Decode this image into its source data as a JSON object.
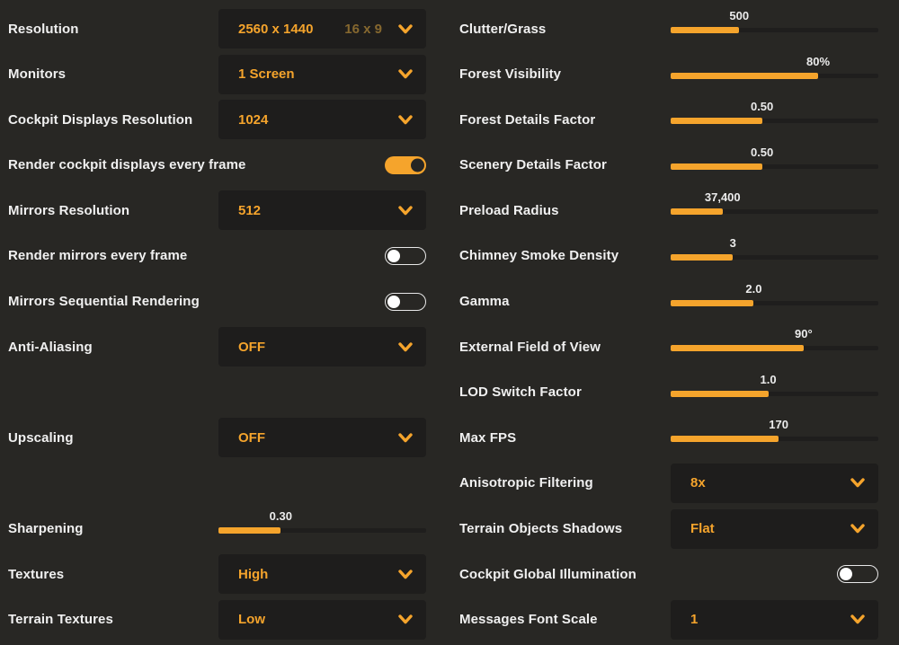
{
  "colors": {
    "background": "#282724",
    "box": "#1e1d1c",
    "track": "#1f1e1d",
    "accent": "#f5a42c",
    "accent_dim": "#86682f",
    "text": "#f0f0f0",
    "toggle_off_border": "#e8e8e8",
    "toggle_knob_off": "#ffffff",
    "toggle_knob_on": "#262523"
  },
  "columns": {
    "left": {
      "rows": [
        {
          "type": "dropdown",
          "label": "Resolution",
          "value": "2560 x 1440",
          "secondary": "16 x 9"
        },
        {
          "type": "dropdown",
          "label": "Monitors",
          "value": "1 Screen"
        },
        {
          "type": "dropdown",
          "label": "Cockpit Displays Resolution",
          "value": "1024"
        },
        {
          "type": "toggle",
          "label": "Render cockpit displays every frame",
          "on": true
        },
        {
          "type": "dropdown",
          "label": "Mirrors Resolution",
          "value": "512"
        },
        {
          "type": "toggle",
          "label": "Render mirrors every frame",
          "on": false
        },
        {
          "type": "toggle",
          "label": "Mirrors Sequential Rendering",
          "on": false
        },
        {
          "type": "dropdown",
          "label": "Anti-Aliasing",
          "value": "OFF"
        },
        {
          "type": "empty"
        },
        {
          "type": "dropdown",
          "label": "Upscaling",
          "value": "OFF"
        },
        {
          "type": "empty"
        },
        {
          "type": "slider",
          "label": "Sharpening",
          "value": "0.30",
          "percent": 30
        },
        {
          "type": "dropdown",
          "label": "Textures",
          "value": "High"
        },
        {
          "type": "dropdown",
          "label": "Terrain Textures",
          "value": "Low"
        }
      ]
    },
    "right": {
      "rows": [
        {
          "type": "slider",
          "label": "Clutter/Grass",
          "value": "500",
          "percent": 33
        },
        {
          "type": "slider",
          "label": "Forest Visibility",
          "value": "80%",
          "percent": 71
        },
        {
          "type": "slider",
          "label": "Forest Details Factor",
          "value": "0.50",
          "percent": 44
        },
        {
          "type": "slider",
          "label": "Scenery Details Factor",
          "value": "0.50",
          "percent": 44
        },
        {
          "type": "slider",
          "label": "Preload Radius",
          "value": "37,400",
          "percent": 25
        },
        {
          "type": "slider",
          "label": "Chimney Smoke Density",
          "value": "3",
          "percent": 30
        },
        {
          "type": "slider",
          "label": "Gamma",
          "value": "2.0",
          "percent": 40
        },
        {
          "type": "slider",
          "label": "External Field of View",
          "value": "90°",
          "percent": 64
        },
        {
          "type": "slider",
          "label": "LOD Switch Factor",
          "value": "1.0",
          "percent": 47
        },
        {
          "type": "slider",
          "label": "Max FPS",
          "value": "170",
          "percent": 52
        },
        {
          "type": "dropdown",
          "label": "Anisotropic Filtering",
          "value": "8x"
        },
        {
          "type": "dropdown",
          "label": "Terrain Objects Shadows",
          "value": "Flat"
        },
        {
          "type": "toggle",
          "label": "Cockpit Global Illumination",
          "on": false
        },
        {
          "type": "dropdown",
          "label": "Messages Font Scale",
          "value": "1"
        }
      ]
    }
  }
}
